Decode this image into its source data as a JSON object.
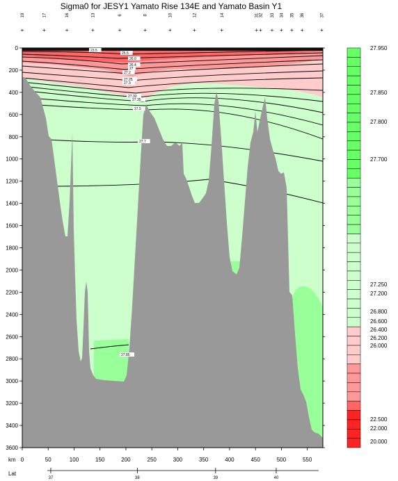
{
  "chart_data": {
    "type": "heatmap",
    "title": "Sigma0 for JESY1 Yamato Rise 134E and Yamato Basin Y1",
    "xlabel": "km",
    "lat_label": "Lat",
    "x_range": [
      0,
      580
    ],
    "y_range": [
      0,
      3600
    ],
    "x_ticks": [
      0,
      50,
      100,
      150,
      200,
      250,
      300,
      350,
      400,
      450,
      500,
      550
    ],
    "y_ticks": [
      0,
      200,
      400,
      600,
      800,
      1000,
      1200,
      1400,
      1600,
      1800,
      2000,
      2200,
      2400,
      2600,
      2800,
      3000,
      3200,
      3400,
      3600
    ],
    "lat_ticks": [
      {
        "lat": "37",
        "km": 55
      },
      {
        "lat": "38",
        "km": 222
      },
      {
        "lat": "39",
        "km": 373
      },
      {
        "lat": "40",
        "km": 490
      }
    ],
    "stations": [
      {
        "label": "19",
        "km": 0
      },
      {
        "label": "17",
        "km": 42
      },
      {
        "label": "16",
        "km": 86
      },
      {
        "label": "13",
        "km": 136
      },
      {
        "label": "6",
        "km": 188
      },
      {
        "label": "8",
        "km": 237
      },
      {
        "label": "10",
        "km": 285
      },
      {
        "label": "12",
        "km": 332
      },
      {
        "label": "14",
        "km": 385
      },
      {
        "label": "31",
        "km": 452
      },
      {
        "label": "32",
        "km": 460
      },
      {
        "label": "33",
        "km": 482
      },
      {
        "label": "34",
        "km": 500
      },
      {
        "label": "35",
        "km": 520
      },
      {
        "label": "36",
        "km": 540
      },
      {
        "label": "37",
        "km": 578
      }
    ],
    "colorbar_labels": [
      "27.950",
      "27.850",
      "27.800",
      "27.700",
      "27.250",
      "27.200",
      "26.800",
      "26.600",
      "26.400",
      "26.200",
      "26.000",
      "22.500",
      "22.000",
      "20.000"
    ],
    "contour_labels": [
      "23.5",
      "25.5",
      "26.0",
      "26.4",
      "27",
      "27.2",
      "27.25",
      "27.3",
      "27.33",
      "27.35",
      "27.5",
      "27.7",
      "27.85"
    ],
    "colors": {
      "bathymetry": "#999999",
      "light_green": "#ccffcc",
      "mid_green": "#99ff99",
      "light_pink": "#ffcccc",
      "mid_pink": "#ff9999",
      "contour": "#000000"
    }
  }
}
